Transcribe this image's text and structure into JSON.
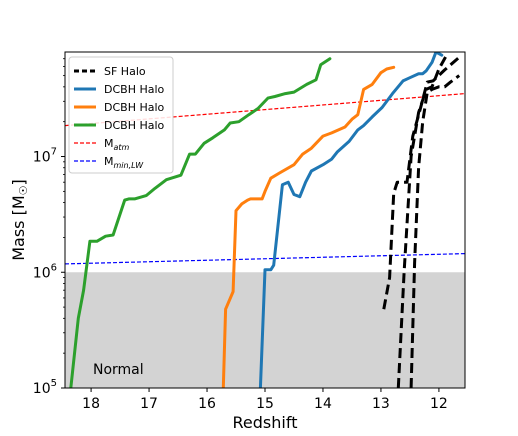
{
  "chart_data": {
    "type": "line",
    "title": "",
    "xlabel": "Redshift",
    "ylabel": "Mass [M",
    "ylabel_sun": "☉",
    "ylabel_close": "]",
    "x_axis_inverted": true,
    "xlim": [
      18.45,
      11.55
    ],
    "ylim": [
      100000,
      80000000
    ],
    "y_scale": "log",
    "x_ticks": [
      {
        "value": 18,
        "label": "18"
      },
      {
        "value": 17,
        "label": "17"
      },
      {
        "value": 16,
        "label": "16"
      },
      {
        "value": 15,
        "label": "15"
      },
      {
        "value": 14,
        "label": "14"
      },
      {
        "value": 13,
        "label": "13"
      },
      {
        "value": 12,
        "label": "12"
      }
    ],
    "y_ticks": [
      {
        "value": 100000,
        "base": "10",
        "exp": "5"
      },
      {
        "value": 1000000,
        "base": "10",
        "exp": "6"
      },
      {
        "value": 10000000,
        "base": "10",
        "exp": "7"
      }
    ],
    "shaded_region": {
      "y_min": 100000,
      "y_max": 1000000,
      "color": "#d3d3d3",
      "label": "Normal"
    },
    "legend": {
      "position": "top-left",
      "entries": [
        {
          "label": "SF Halo",
          "color": "#000000",
          "style": "dashed"
        },
        {
          "label": "DCBH Halo",
          "color": "#1f77b4",
          "style": "solid"
        },
        {
          "label": "DCBH Halo",
          "color": "#ff7f0e",
          "style": "solid"
        },
        {
          "label": "DCBH Halo",
          "color": "#2ca02c",
          "style": "solid"
        },
        {
          "label": "M",
          "sub": "atm",
          "color": "#ff0000",
          "style": "dashed-thin"
        },
        {
          "label": "M",
          "sub": "min,LW",
          "color": "#0000ff",
          "style": "dashed-thin"
        }
      ]
    },
    "threshold_lines": [
      {
        "name": "M_atm",
        "color": "#ff0000",
        "x": [
          18.45,
          11.55
        ],
        "y": [
          18500000,
          35000000
        ]
      },
      {
        "name": "M_min,LW",
        "color": "#0000ff",
        "x": [
          18.45,
          11.55
        ],
        "y": [
          1180000,
          1450000
        ]
      }
    ],
    "series": [
      {
        "color": "#2ca02c",
        "style": "solid",
        "width": 3,
        "x": [
          18.35,
          18.22,
          18.13,
          18.02,
          17.9,
          17.75,
          17.62,
          17.42,
          17.35,
          17.25,
          17.05,
          16.9,
          16.7,
          16.45,
          16.3,
          16.2,
          16.05,
          15.9,
          15.7,
          15.6,
          15.45,
          15.28,
          15.12,
          14.95,
          14.83,
          14.65,
          14.5,
          14.28,
          14.12,
          14.04,
          13.88
        ],
        "y": [
          100000,
          400000,
          700000,
          1850000,
          1850000,
          2050000,
          2100000,
          4200000,
          4300000,
          4300000,
          4600000,
          5300000,
          6300000,
          6900000,
          10500000,
          10500000,
          13000000,
          14500000,
          17000000,
          19500000,
          20000000,
          23000000,
          26000000,
          32000000,
          33000000,
          35000000,
          36000000,
          42000000,
          46000000,
          62000000,
          70000000
        ]
      },
      {
        "color": "#ff7f0e",
        "style": "solid",
        "width": 3,
        "x": [
          15.72,
          15.68,
          15.55,
          15.5,
          15.4,
          15.3,
          15.25,
          15.05,
          15.0,
          14.9,
          14.75,
          14.5,
          14.35,
          14.2,
          14.0,
          13.85,
          13.62,
          13.5,
          13.4,
          13.3,
          13.15,
          13.0,
          12.9,
          12.78
        ],
        "y": [
          100000,
          480000,
          680000,
          3400000,
          3900000,
          4200000,
          4300000,
          4300000,
          5000000,
          6500000,
          7200000,
          8500000,
          10500000,
          11800000,
          15000000,
          16000000,
          18000000,
          21000000,
          23000000,
          38000000,
          42000000,
          53000000,
          57000000,
          59000000
        ]
      },
      {
        "color": "#1f77b4",
        "style": "solid",
        "width": 3,
        "x": [
          15.08,
          15.0,
          14.9,
          14.85,
          14.7,
          14.6,
          14.5,
          14.4,
          14.3,
          14.2,
          14.0,
          13.85,
          13.75,
          13.55,
          13.4,
          13.3,
          13.15,
          12.98,
          12.8,
          12.62,
          12.5,
          12.35,
          12.28,
          12.22,
          12.12,
          12.05,
          11.95
        ],
        "y": [
          100000,
          1050000,
          1050000,
          1150000,
          5700000,
          6000000,
          4700000,
          4500000,
          6000000,
          7500000,
          8500000,
          9500000,
          11000000,
          13500000,
          17000000,
          18500000,
          22000000,
          26500000,
          35000000,
          45000000,
          48000000,
          52000000,
          52000000,
          55000000,
          65000000,
          80000000,
          75000000
        ]
      },
      {
        "color": "#000000",
        "style": "dashed",
        "width": 3,
        "x": [
          12.95,
          12.85,
          12.78,
          12.72,
          12.55,
          12.45,
          12.32,
          12.2,
          12.1,
          11.9,
          11.65
        ],
        "y": [
          480000,
          900000,
          4800000,
          6000000,
          6000000,
          15000000,
          26000000,
          44000000,
          45000000,
          56000000,
          72000000
        ]
      },
      {
        "color": "#000000",
        "style": "dashed",
        "width": 3,
        "x": [
          12.7,
          12.6,
          12.48,
          12.35,
          12.22,
          12.12,
          12.0,
          11.85
        ],
        "y": [
          100000,
          1000000,
          10000000,
          24000000,
          38000000,
          40000000,
          57000000,
          78000000
        ]
      },
      {
        "color": "#000000",
        "style": "dashed",
        "width": 3,
        "x": [
          12.48,
          12.42,
          12.35,
          12.28,
          12.2,
          12.12,
          12.0,
          11.9,
          11.8,
          11.65
        ],
        "y": [
          100000,
          1200000,
          8000000,
          20000000,
          36000000,
          38000000,
          40000000,
          40000000,
          44000000,
          50000000
        ]
      }
    ]
  }
}
